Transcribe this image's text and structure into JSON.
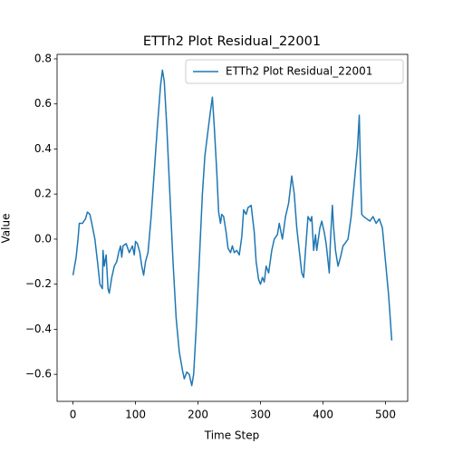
{
  "chart_data": {
    "type": "line",
    "title": "ETTh2 Plot Residual_22001",
    "x_label": "Time Step",
    "y_label": "Value",
    "legend": "upper right",
    "grid": false,
    "xlim": [
      -25.5,
      535.5
    ],
    "xticks": [
      0,
      100,
      200,
      300,
      400,
      500
    ],
    "ylim": [
      -0.72,
      0.82
    ],
    "yticks": [
      {
        "value": -0.6,
        "label": "−0.6"
      },
      {
        "value": -0.4,
        "label": "−0.4"
      },
      {
        "value": -0.2,
        "label": "−0.2"
      },
      {
        "value": 0,
        "label": "0.0"
      },
      {
        "value": 0.2,
        "label": "0.2"
      },
      {
        "value": 0.4,
        "label": "0.4"
      },
      {
        "value": 0.6,
        "label": "0.6"
      },
      {
        "value": 0.8,
        "label": "0.8"
      }
    ],
    "x": [
      0,
      5,
      8,
      10,
      15,
      20,
      23,
      27,
      30,
      35,
      40,
      43,
      47,
      48,
      50,
      53,
      56,
      58,
      62,
      66,
      70,
      73,
      76,
      78,
      80,
      85,
      90,
      95,
      98,
      100,
      103,
      107,
      110,
      113,
      116,
      120,
      125,
      130,
      135,
      140,
      143,
      146,
      150,
      155,
      160,
      165,
      170,
      175,
      178,
      182,
      186,
      190,
      193,
      197,
      202,
      207,
      211,
      215,
      220,
      223,
      226,
      230,
      233,
      236,
      238,
      241,
      245,
      248,
      252,
      255,
      258,
      262,
      266,
      270,
      273,
      277,
      280,
      285,
      290,
      293,
      297,
      300,
      303,
      306,
      309,
      313,
      318,
      322,
      327,
      330,
      335,
      340,
      345,
      350,
      354,
      358,
      362,
      366,
      369,
      372,
      376,
      380,
      382,
      385,
      388,
      390,
      395,
      398,
      402,
      405,
      410,
      412,
      415,
      417,
      420,
      424,
      428,
      432,
      435,
      440,
      445,
      450,
      455,
      458,
      460,
      462,
      465,
      470,
      475,
      480,
      485,
      490,
      495,
      500,
      505,
      510
    ],
    "series": [
      {
        "name": "ETTh2 Plot Residual_22001",
        "color": "#1f77b4",
        "values": [
          -0.16,
          -0.08,
          0.0,
          0.07,
          0.07,
          0.09,
          0.12,
          0.11,
          0.07,
          0.0,
          -0.12,
          -0.2,
          -0.22,
          -0.05,
          -0.12,
          -0.07,
          -0.22,
          -0.24,
          -0.17,
          -0.12,
          -0.1,
          -0.06,
          -0.03,
          -0.08,
          -0.03,
          -0.02,
          -0.06,
          -0.03,
          -0.07,
          -0.01,
          -0.02,
          -0.06,
          -0.12,
          -0.16,
          -0.1,
          -0.06,
          0.1,
          0.3,
          0.5,
          0.68,
          0.75,
          0.7,
          0.5,
          0.2,
          -0.1,
          -0.35,
          -0.5,
          -0.58,
          -0.62,
          -0.59,
          -0.6,
          -0.65,
          -0.6,
          -0.4,
          -0.1,
          0.2,
          0.37,
          0.46,
          0.57,
          0.63,
          0.5,
          0.3,
          0.12,
          0.07,
          0.11,
          0.1,
          0.03,
          -0.04,
          -0.06,
          -0.03,
          -0.06,
          -0.05,
          -0.07,
          0.01,
          0.13,
          0.11,
          0.14,
          0.15,
          0.03,
          -0.1,
          -0.18,
          -0.2,
          -0.17,
          -0.19,
          -0.12,
          -0.15,
          -0.05,
          0.0,
          0.02,
          0.07,
          0.0,
          0.1,
          0.16,
          0.28,
          0.2,
          0.05,
          -0.05,
          -0.15,
          -0.17,
          -0.05,
          0.1,
          0.08,
          0.1,
          -0.05,
          0.02,
          -0.05,
          0.05,
          0.08,
          0.03,
          -0.02,
          -0.15,
          0.0,
          0.15,
          0.05,
          -0.05,
          -0.12,
          -0.08,
          -0.03,
          -0.02,
          0.0,
          0.1,
          0.25,
          0.4,
          0.55,
          0.3,
          0.11,
          0.1,
          0.09,
          0.08,
          0.1,
          0.07,
          0.09,
          0.05,
          -0.1,
          -0.25,
          -0.45
        ]
      }
    ]
  }
}
